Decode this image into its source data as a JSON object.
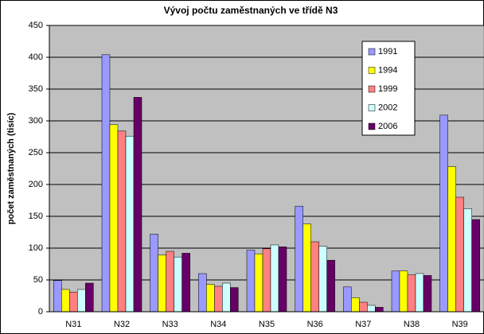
{
  "chart_data": {
    "type": "bar",
    "title": "Vývoj počtu zaměstnaných ve třídě N3",
    "y_label": "počet zaměstnaných (tisíc)",
    "categories": [
      "N31",
      "N32",
      "N33",
      "N34",
      "N35",
      "N36",
      "N37",
      "N38",
      "N39"
    ],
    "series": [
      {
        "name": "1991",
        "color": "#9999ff",
        "values": [
          49,
          404,
          122,
          60,
          97,
          166,
          39,
          64,
          309
        ]
      },
      {
        "name": "1994",
        "color": "#ffff00",
        "values": [
          35,
          294,
          89,
          43,
          91,
          138,
          22,
          64,
          228
        ]
      },
      {
        "name": "1999",
        "color": "#ff8080",
        "values": [
          31,
          284,
          95,
          40,
          99,
          110,
          15,
          58,
          180
        ]
      },
      {
        "name": "2002",
        "color": "#ccffff",
        "values": [
          35,
          276,
          86,
          45,
          105,
          103,
          10,
          60,
          162
        ]
      },
      {
        "name": "2006",
        "color": "#660066",
        "values": [
          45,
          337,
          92,
          38,
          102,
          81,
          7,
          57,
          145
        ]
      }
    ],
    "ylim": [
      0,
      450
    ],
    "yticks": [
      0,
      50,
      100,
      150,
      200,
      250,
      300,
      350,
      400,
      450
    ],
    "grid": true,
    "legend": "top-right"
  }
}
